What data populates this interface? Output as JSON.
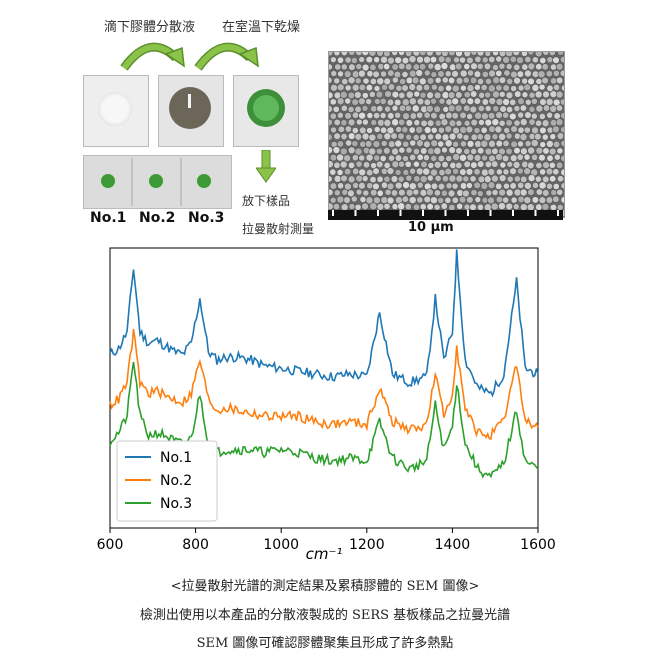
{
  "process": {
    "step1": "滴下膠體分散液",
    "step2": "在室溫下乾燥",
    "step3_line1": "放下樣品",
    "step3_line2": "拉曼散射測量",
    "samples": [
      "No.1",
      "No.2",
      "No.3"
    ]
  },
  "sem": {
    "scale_label": "10 μm"
  },
  "captions": {
    "line1": "<拉曼散射光譜的測定結果及累積膠體的 SEM 圖像>",
    "line2": "檢測出使用以本產品的分散液製成的 SERS 基板樣品之拉曼光譜",
    "line3": "SEM 圖像可確認膠體聚集且形成了許多熱點"
  },
  "colors": {
    "no1": "#1f77b4",
    "no2": "#ff7f0e",
    "no3": "#2ca02c",
    "arrow_green": "#7cb342"
  },
  "chart_data": {
    "type": "line",
    "title": "",
    "xlabel": "cm⁻¹",
    "ylabel": "",
    "xlim": [
      600,
      1600
    ],
    "xticks": [
      600,
      800,
      1000,
      1200,
      1400,
      1600
    ],
    "legend_position": "lower-left",
    "grid": false,
    "series": [
      {
        "name": "No.1",
        "x": [
          600,
          620,
          640,
          655,
          670,
          690,
          710,
          730,
          750,
          770,
          790,
          810,
          830,
          850,
          870,
          900,
          930,
          960,
          1000,
          1040,
          1080,
          1120,
          1160,
          1200,
          1230,
          1260,
          1300,
          1340,
          1360,
          1380,
          1400,
          1410,
          1430,
          1460,
          1490,
          1520,
          1550,
          1570,
          1600
        ],
        "y": [
          0.62,
          0.64,
          0.7,
          0.93,
          0.7,
          0.66,
          0.67,
          0.65,
          0.63,
          0.62,
          0.66,
          0.82,
          0.63,
          0.6,
          0.61,
          0.61,
          0.6,
          0.58,
          0.57,
          0.56,
          0.55,
          0.54,
          0.55,
          0.54,
          0.77,
          0.55,
          0.52,
          0.54,
          0.82,
          0.6,
          0.7,
          0.98,
          0.6,
          0.5,
          0.48,
          0.55,
          0.88,
          0.57,
          0.55
        ]
      },
      {
        "name": "No.2",
        "x": [
          600,
          620,
          640,
          655,
          670,
          690,
          710,
          730,
          750,
          770,
          790,
          810,
          830,
          850,
          870,
          900,
          930,
          960,
          1000,
          1040,
          1080,
          1120,
          1160,
          1200,
          1230,
          1260,
          1300,
          1340,
          1360,
          1380,
          1400,
          1410,
          1430,
          1460,
          1490,
          1520,
          1550,
          1570,
          1600
        ],
        "y": [
          0.44,
          0.46,
          0.52,
          0.7,
          0.52,
          0.48,
          0.49,
          0.47,
          0.46,
          0.45,
          0.48,
          0.6,
          0.46,
          0.42,
          0.43,
          0.42,
          0.41,
          0.4,
          0.4,
          0.4,
          0.38,
          0.37,
          0.38,
          0.37,
          0.5,
          0.38,
          0.35,
          0.37,
          0.55,
          0.4,
          0.48,
          0.65,
          0.42,
          0.34,
          0.33,
          0.38,
          0.59,
          0.38,
          0.36
        ]
      },
      {
        "name": "No.3",
        "x": [
          600,
          620,
          640,
          655,
          670,
          690,
          710,
          730,
          750,
          770,
          790,
          810,
          830,
          850,
          870,
          900,
          930,
          960,
          1000,
          1040,
          1080,
          1120,
          1160,
          1200,
          1230,
          1260,
          1300,
          1340,
          1360,
          1380,
          1400,
          1410,
          1430,
          1460,
          1490,
          1520,
          1550,
          1570,
          1600
        ],
        "y": [
          0.31,
          0.34,
          0.4,
          0.6,
          0.4,
          0.33,
          0.34,
          0.33,
          0.31,
          0.3,
          0.32,
          0.48,
          0.3,
          0.27,
          0.28,
          0.28,
          0.28,
          0.27,
          0.28,
          0.27,
          0.25,
          0.24,
          0.25,
          0.24,
          0.38,
          0.25,
          0.21,
          0.24,
          0.44,
          0.28,
          0.36,
          0.52,
          0.3,
          0.21,
          0.18,
          0.23,
          0.42,
          0.24,
          0.21
        ]
      }
    ]
  }
}
